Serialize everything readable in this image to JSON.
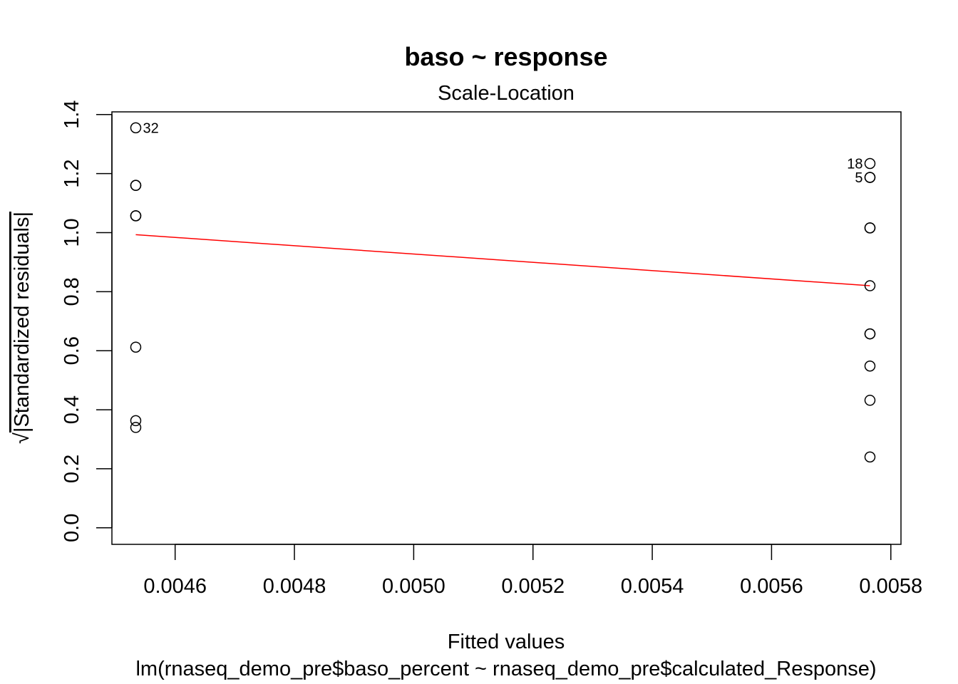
{
  "chart_data": {
    "type": "scatter",
    "title": "baso ~ response",
    "subtitle": "Scale-Location",
    "xlabel": "Fitted values",
    "caption": "lm(rnaseq_demo_pre$baso_percent ~ rnaseq_demo_pre$calculated_Response)",
    "ylabel_radical": "√",
    "ylabel": "|Standardized residuals|",
    "xlim": [
      0.004494,
      0.005817
    ],
    "ylim": [
      -0.056,
      1.409
    ],
    "x_ticks": [
      0.0046,
      0.0048,
      0.005,
      0.0052,
      0.0054,
      0.0056,
      0.0058
    ],
    "x_tick_labels": [
      "0.0046",
      "0.0048",
      "0.0050",
      "0.0052",
      "0.0054",
      "0.0056",
      "0.0058"
    ],
    "y_ticks": [
      0.0,
      0.2,
      0.4,
      0.6,
      0.8,
      1.0,
      1.2,
      1.4
    ],
    "y_tick_labels": [
      "0.0",
      "0.2",
      "0.4",
      "0.6",
      "0.8",
      "1.0",
      "1.2",
      "1.4"
    ],
    "points": [
      {
        "x": 0.004534,
        "y": 1.355,
        "label": "32"
      },
      {
        "x": 0.004534,
        "y": 1.16
      },
      {
        "x": 0.004534,
        "y": 1.16
      },
      {
        "x": 0.004534,
        "y": 1.057
      },
      {
        "x": 0.004534,
        "y": 1.057
      },
      {
        "x": 0.004534,
        "y": 0.612
      },
      {
        "x": 0.004534,
        "y": 0.363
      },
      {
        "x": 0.004534,
        "y": 0.34
      },
      {
        "x": 0.005765,
        "y": 1.234,
        "label": "18"
      },
      {
        "x": 0.005765,
        "y": 1.187,
        "label": "5"
      },
      {
        "x": 0.005765,
        "y": 1.187
      },
      {
        "x": 0.005765,
        "y": 1.016
      },
      {
        "x": 0.005765,
        "y": 1.016
      },
      {
        "x": 0.005765,
        "y": 0.82
      },
      {
        "x": 0.005765,
        "y": 0.657
      },
      {
        "x": 0.005765,
        "y": 0.657
      },
      {
        "x": 0.005765,
        "y": 0.548
      },
      {
        "x": 0.005765,
        "y": 0.432
      },
      {
        "x": 0.005765,
        "y": 0.24
      }
    ],
    "smooth_line": {
      "color": "#ff0000",
      "points": [
        [
          0.004534,
          0.993
        ],
        [
          0.005765,
          0.82
        ]
      ]
    },
    "grid": false,
    "legend": "none"
  }
}
